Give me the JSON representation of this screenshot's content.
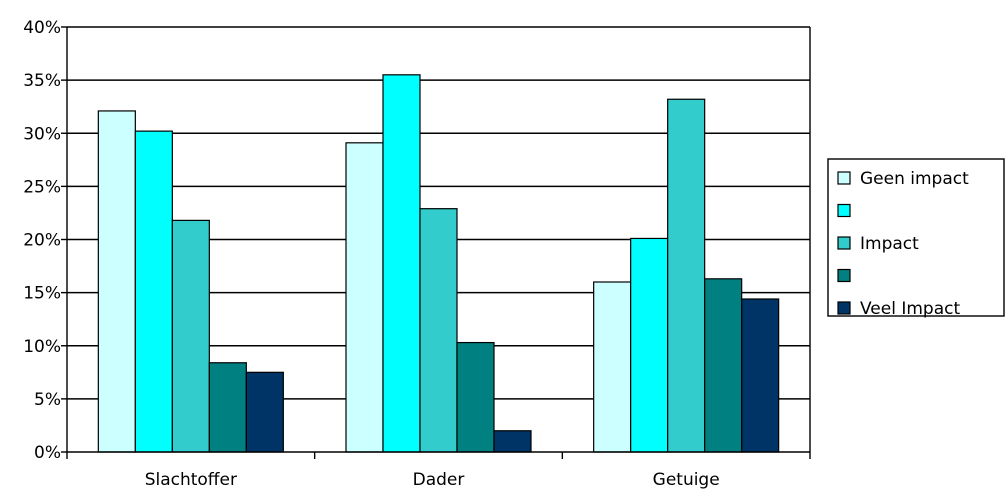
{
  "chart_data": {
    "type": "bar",
    "categories": [
      "Slachtoffer",
      "Dader",
      "Getuige"
    ],
    "series": [
      {
        "name": "Geen impact",
        "color": "#ccffff",
        "values": [
          32.1,
          29.1,
          16.0
        ]
      },
      {
        "name": "",
        "color": "#00ffff",
        "values": [
          30.2,
          35.5,
          20.1
        ]
      },
      {
        "name": "Impact",
        "color": "#33cccc",
        "values": [
          21.8,
          22.9,
          33.2
        ]
      },
      {
        "name": "",
        "color": "#008080",
        "values": [
          8.4,
          10.3,
          16.3
        ]
      },
      {
        "name": "Veel Impact",
        "color": "#003366",
        "values": [
          7.5,
          2.0,
          14.4
        ]
      }
    ],
    "ylim": [
      0,
      40
    ],
    "yticks": [
      "0%",
      "5%",
      "10%",
      "15%",
      "20%",
      "25%",
      "30%",
      "35%",
      "40%"
    ],
    "grid": true,
    "legend_position": "right",
    "title": "",
    "xlabel": "",
    "ylabel": ""
  }
}
